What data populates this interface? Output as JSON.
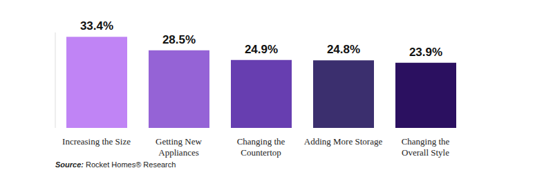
{
  "chart_data": {
    "type": "bar",
    "categories": [
      "Increasing the Size",
      "Getting New Appliances",
      "Changing the Countertop",
      "Adding More Storage",
      "Changing the Overall Style"
    ],
    "values": [
      33.4,
      28.5,
      24.9,
      24.8,
      23.9
    ],
    "value_labels": [
      "33.4%",
      "28.5%",
      "24.9%",
      "24.8%",
      "23.9%"
    ],
    "colors": [
      "#c084f5",
      "#9563d6",
      "#673eb0",
      "#3b2f6e",
      "#2b1060"
    ],
    "ylim": [
      0,
      35
    ],
    "data_labels": true,
    "tick_labels": "x",
    "grid": false,
    "annotations": [
      "Source: Rocket Homes® Research"
    ]
  }
}
